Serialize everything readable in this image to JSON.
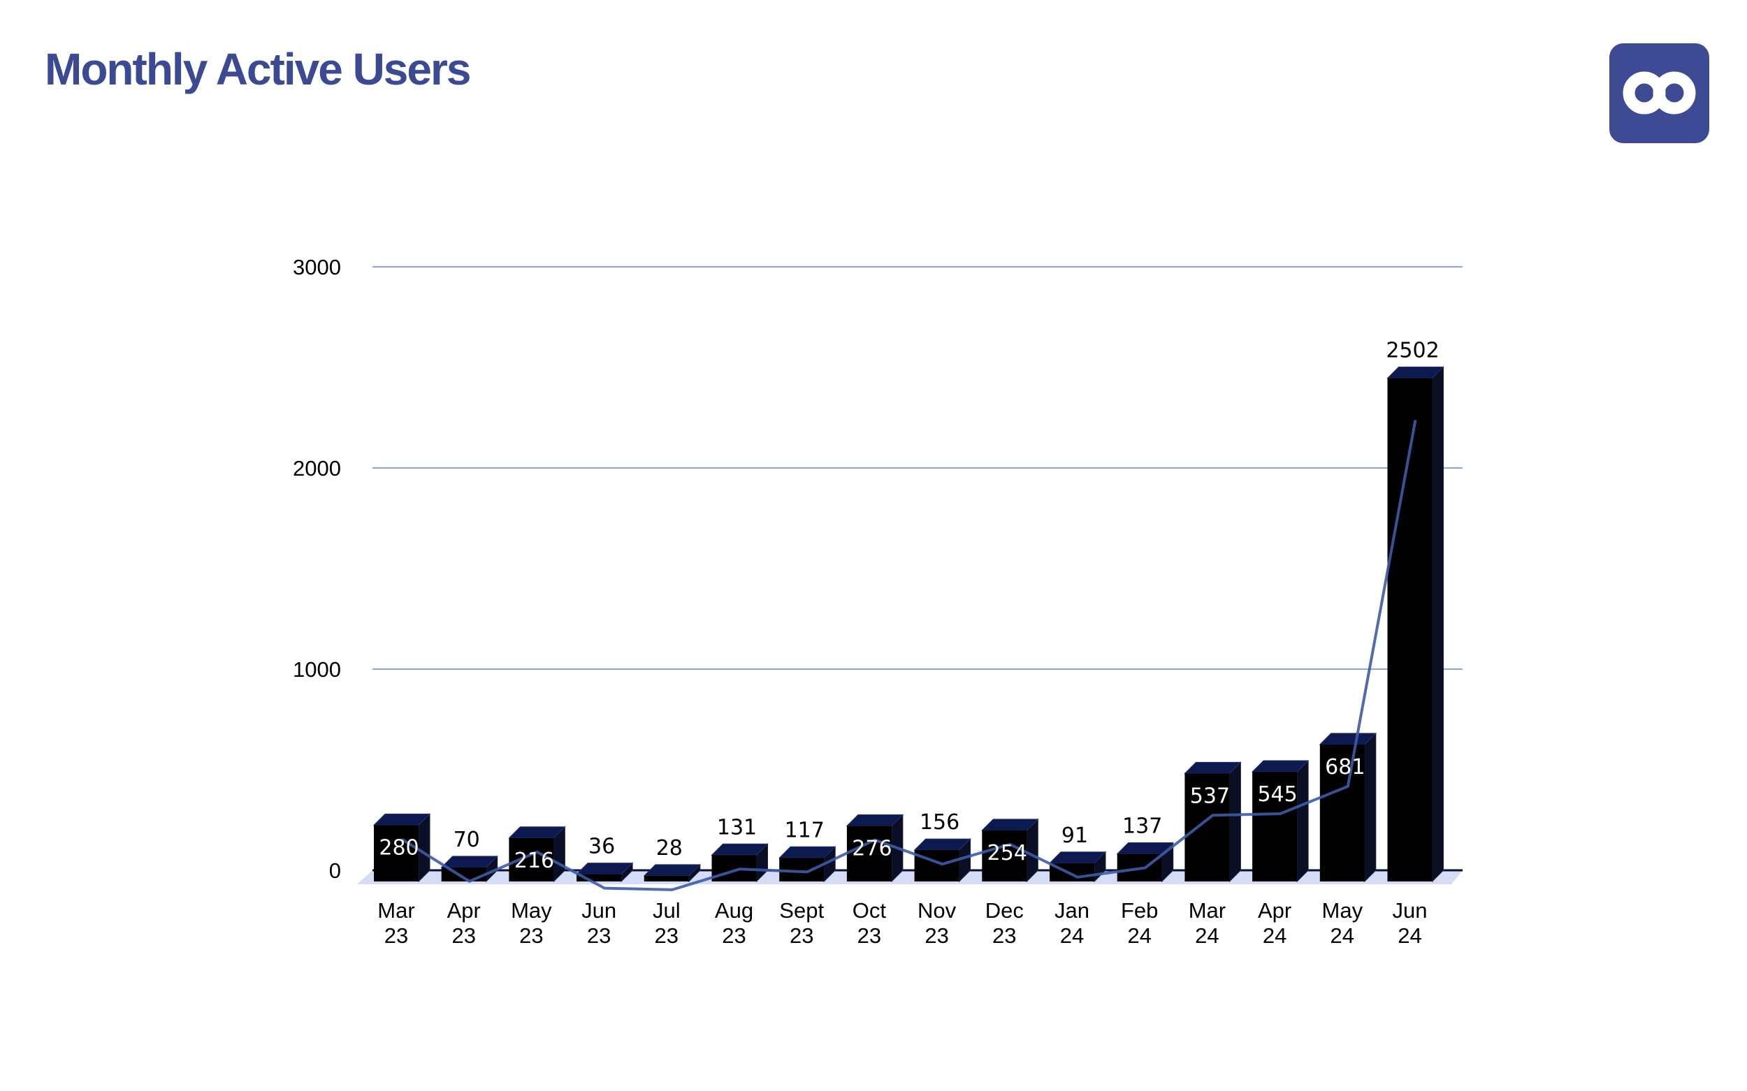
{
  "header": {
    "title": "Monthly Active Users",
    "logo_icon": "infinity-logo-icon"
  },
  "colors": {
    "title": "#3b4a93",
    "logo_bg": "#3d4b95",
    "bar_front": "#000000",
    "bar_top": "#0d1a4f",
    "bar_side": "#0a0f26",
    "trend_line": "#3e5ba8",
    "gridline": "#8fa3dc",
    "floor": "#d5dcf5"
  },
  "chart_data": {
    "type": "bar",
    "title": "Monthly Active Users",
    "categories": [
      [
        "Mar",
        "23"
      ],
      [
        "Apr",
        "23"
      ],
      [
        "May",
        "23"
      ],
      [
        "Jun",
        "23"
      ],
      [
        "Jul",
        "23"
      ],
      [
        "Aug",
        "23"
      ],
      [
        "Sept",
        "23"
      ],
      [
        "Oct",
        "23"
      ],
      [
        "Nov",
        "23"
      ],
      [
        "Dec",
        "23"
      ],
      [
        "Jan",
        "24"
      ],
      [
        "Feb",
        "24"
      ],
      [
        "Mar",
        "24"
      ],
      [
        "Apr",
        "24"
      ],
      [
        "May",
        "24"
      ],
      [
        "Jun",
        "24"
      ]
    ],
    "values": [
      280,
      70,
      216,
      36,
      28,
      131,
      117,
      276,
      156,
      254,
      91,
      137,
      537,
      545,
      681,
      2502
    ],
    "label_inside": [
      true,
      false,
      true,
      false,
      false,
      false,
      false,
      true,
      false,
      true,
      false,
      false,
      true,
      true,
      true,
      false
    ],
    "yticks": [
      0,
      1000,
      2000,
      3000
    ],
    "ylim": [
      0,
      3000
    ],
    "grid": true,
    "legend": "none",
    "trend_line": true,
    "bar_style": "3d"
  }
}
